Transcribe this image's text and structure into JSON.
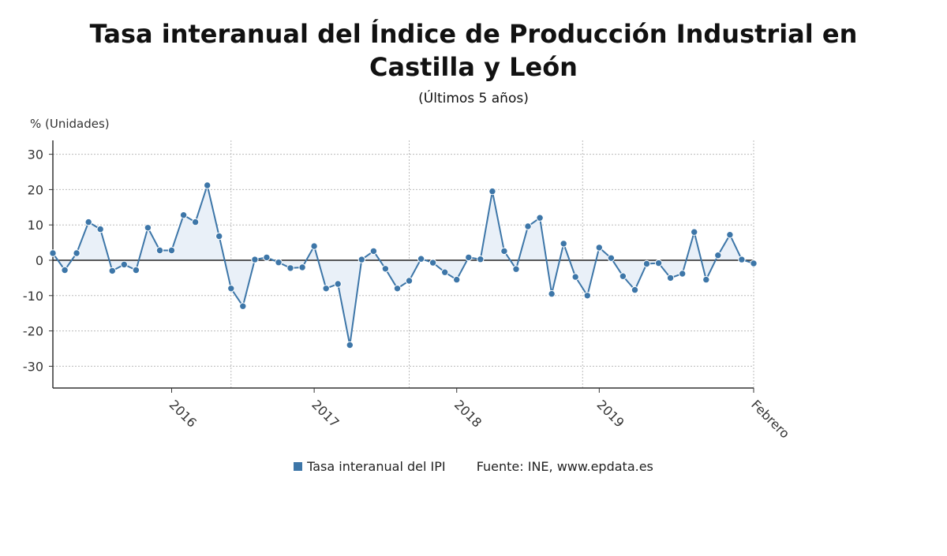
{
  "title": "Tasa interanual del Índice de Producción Industrial en Castilla y León",
  "subtitle": "(Últimos 5 años)",
  "colors": {
    "line": "#3d76a8",
    "area": "#e9f0f8",
    "grid": "#bbbbbb"
  },
  "legend": {
    "series_label": "Tasa interanual del IPI",
    "source": "Fuente: INE, www.epdata.es"
  },
  "chart_data": {
    "type": "line",
    "title": "Tasa interanual del Índice de Producción Industrial en Castilla y León",
    "subtitle": "(Últimos 5 años)",
    "ylabel": "% (Unidades)",
    "xlabel": "",
    "ylim": [
      -36,
      34
    ],
    "yticks": [
      30,
      20,
      10,
      0,
      -10,
      -20,
      -30
    ],
    "xticks": [
      {
        "label": "2016",
        "index": 10
      },
      {
        "label": "2017",
        "index": 22
      },
      {
        "label": "2018",
        "index": 34
      },
      {
        "label": "2019",
        "index": 46
      },
      {
        "label": "Febrero",
        "index": 59
      }
    ],
    "grid": true,
    "legend_position": "bottom",
    "series": [
      {
        "name": "Tasa interanual del IPI",
        "values": [
          2,
          -2.8,
          2,
          10.8,
          8.8,
          -3,
          -1.2,
          -2.8,
          9.2,
          2.8,
          2.8,
          12.8,
          10.8,
          21.2,
          6.8,
          -8,
          -13,
          0.2,
          0.8,
          -0.6,
          -2.2,
          -2,
          4,
          -8,
          -6.7,
          -24,
          0.2,
          2.6,
          -2.4,
          -8,
          -5.8,
          0.4,
          -0.7,
          -3.4,
          -5.5,
          0.8,
          0.3,
          19.5,
          2.6,
          -2.5,
          9.6,
          12,
          -9.5,
          4.7,
          -4.7,
          -10,
          3.6,
          0.6,
          -4.5,
          -8.4,
          -1,
          -0.8,
          -5,
          -3.8,
          8,
          -5.5,
          1.4,
          7.2,
          0.2,
          -0.9
        ]
      }
    ]
  }
}
